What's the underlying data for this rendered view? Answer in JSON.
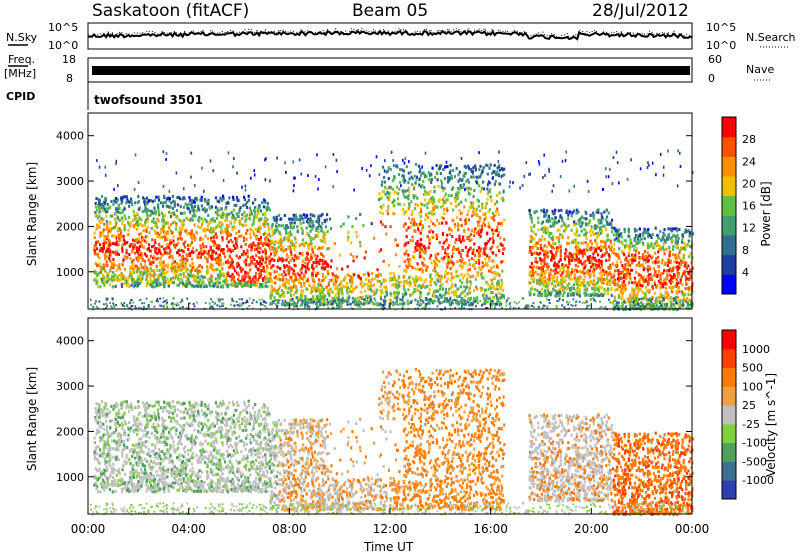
{
  "header": {
    "station": "Saskatoon (fitACF)",
    "beam": "Beam 05",
    "date": "28/Jul/2012"
  },
  "top_panels": {
    "nsky_label": "N.Sky",
    "nsky_ticks": [
      "10^5",
      "10^0"
    ],
    "nsearch_label": "N.Search",
    "nsearch_ticks": [
      "10^5",
      "10^0"
    ],
    "freq_label_1": "Freq.",
    "freq_label_2": "[MHz]",
    "freq_ticks": [
      "18",
      "8"
    ],
    "nave_label": "Nave",
    "nave_ticks": [
      "60",
      "0"
    ],
    "cpid_label": "CPID",
    "cpid_value": "twofsound 3501"
  },
  "chart_data": [
    {
      "type": "heatmap",
      "ylabel": "Slant Range [km]",
      "yticks": [
        "4000",
        "3000",
        "2000",
        "1000"
      ],
      "ylim": [
        180,
        4500
      ],
      "xlim": [
        0,
        24
      ],
      "colorbar_label": "Power [dB]",
      "colorbar_ticks": [
        "28",
        "24",
        "20",
        "16",
        "12",
        "8",
        "4"
      ],
      "colors": [
        "#0000ff",
        "#1f3f9e",
        "#2f6f8f",
        "#3f9f6f",
        "#5fbf3f",
        "#f0c000",
        "#ff9000",
        "#ff5000",
        "#ff0000"
      ],
      "echo_bands": [
        {
          "start": 0.2,
          "end": 7.2,
          "range_min": 700,
          "range_max": 2700
        },
        {
          "start": 7.2,
          "end": 11.5,
          "range_min": 300,
          "range_max": 2300
        },
        {
          "start": 11.5,
          "end": 16.5,
          "range_min": 300,
          "range_max": 3400
        },
        {
          "start": 17.5,
          "end": 20.8,
          "range_min": 500,
          "range_max": 2400
        },
        {
          "start": 20.8,
          "end": 24.0,
          "range_min": 200,
          "range_max": 2000
        }
      ]
    },
    {
      "type": "heatmap",
      "ylabel": "Slant Range [km]",
      "yticks": [
        "4000",
        "3000",
        "2000",
        "1000"
      ],
      "ylim": [
        180,
        4500
      ],
      "xlim": [
        0,
        24
      ],
      "xticks": [
        "00:00",
        "04:00",
        "08:00",
        "12:00",
        "16:00",
        "20:00",
        "00:00"
      ],
      "xlabel": "Time UT",
      "colorbar_label": "Velocity [m s^-1]",
      "colorbar_ticks": [
        "1000",
        "500",
        "100",
        "25",
        "-25",
        "-100",
        "-500",
        "-1000"
      ],
      "colors": [
        "#2f3fb0",
        "#3f6f8f",
        "#4f9f5f",
        "#7fcf3f",
        "#c0c0c0",
        "#f0a040",
        "#ff7a00",
        "#ff4000",
        "#ff0000"
      ]
    }
  ]
}
